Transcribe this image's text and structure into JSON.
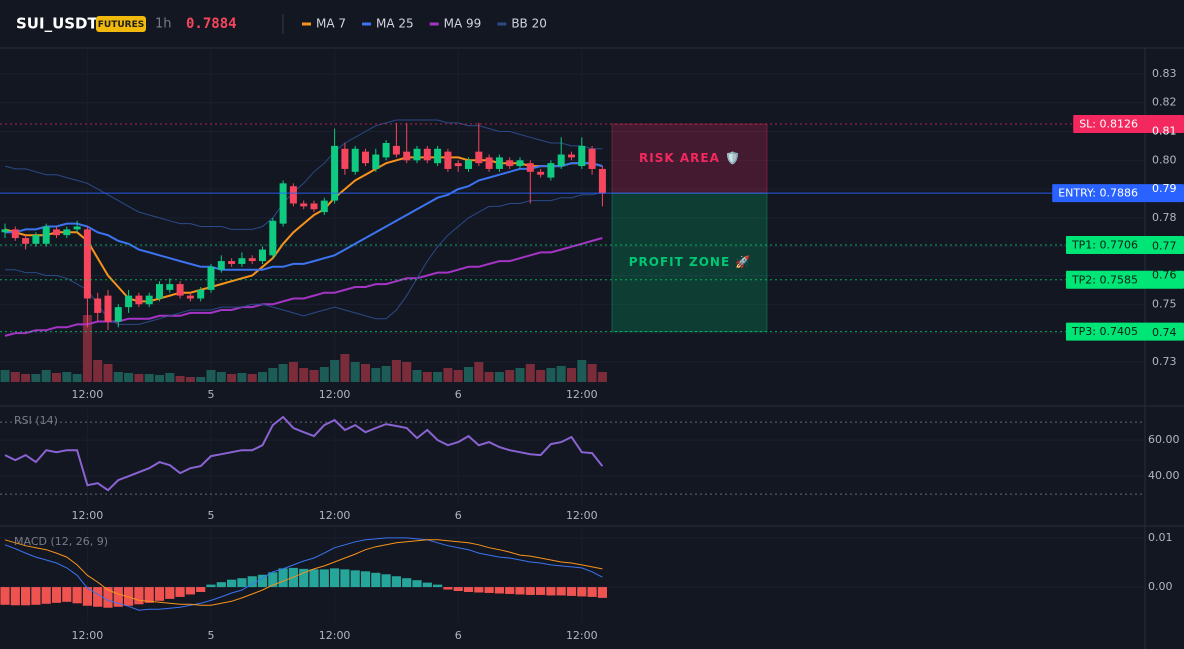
{
  "header": {
    "symbol": "SUI_USDT",
    "badge": "FUTURES",
    "interval": "1h",
    "price": "0.7884"
  },
  "chart_data": [
    {
      "type": "candlestick",
      "categories": [
        null,
        null,
        null,
        null,
        null,
        null,
        null,
        null,
        "12:00",
        null,
        null,
        null,
        null,
        null,
        null,
        null,
        null,
        null,
        null,
        null,
        "5",
        null,
        null,
        null,
        null,
        null,
        null,
        null,
        null,
        null,
        null,
        null,
        "12:00",
        null,
        null,
        null,
        null,
        null,
        null,
        null,
        null,
        null,
        null,
        null,
        "6",
        null,
        null,
        null,
        null,
        null,
        null,
        null,
        null,
        null,
        null,
        null,
        "12:00",
        null,
        null
      ],
      "open": [
        0.775,
        0.776,
        0.773,
        0.771,
        0.771,
        0.776,
        0.774,
        0.776,
        0.776,
        0.752,
        0.753,
        0.744,
        0.749,
        0.753,
        0.75,
        0.752,
        0.755,
        0.757,
        0.753,
        0.752,
        0.755,
        0.762,
        0.765,
        0.764,
        0.766,
        0.765,
        0.767,
        0.778,
        0.791,
        0.785,
        0.785,
        0.782,
        0.786,
        0.804,
        0.796,
        0.803,
        0.797,
        0.801,
        0.805,
        0.803,
        0.8,
        0.804,
        0.799,
        0.803,
        0.799,
        0.797,
        0.803,
        0.801,
        0.797,
        0.8,
        0.798,
        0.799,
        0.796,
        0.794,
        0.798,
        0.802,
        0.798,
        0.804,
        0.797
      ],
      "high": [
        0.778,
        0.777,
        0.774,
        0.775,
        0.778,
        0.777,
        0.777,
        0.779,
        0.777,
        0.754,
        0.755,
        0.75,
        0.755,
        0.754,
        0.754,
        0.758,
        0.759,
        0.758,
        0.754,
        0.756,
        0.764,
        0.767,
        0.766,
        0.768,
        0.767,
        0.77,
        0.78,
        0.793,
        0.792,
        0.786,
        0.786,
        0.787,
        0.811,
        0.806,
        0.805,
        0.804,
        0.804,
        0.807,
        0.813,
        0.813,
        0.805,
        0.805,
        0.805,
        0.804,
        0.8,
        0.801,
        0.813,
        0.802,
        0.802,
        0.801,
        0.801,
        0.8,
        0.797,
        0.8,
        0.808,
        0.803,
        0.808,
        0.805,
        0.798
      ],
      "low": [
        0.773,
        0.772,
        0.769,
        0.77,
        0.77,
        0.773,
        0.773,
        0.775,
        0.742,
        0.744,
        0.741,
        0.742,
        0.747,
        0.749,
        0.749,
        0.751,
        0.754,
        0.752,
        0.751,
        0.751,
        0.754,
        0.761,
        0.763,
        0.763,
        0.764,
        0.764,
        0.766,
        0.777,
        0.784,
        0.783,
        0.782,
        0.781,
        0.785,
        0.795,
        0.795,
        0.798,
        0.796,
        0.8,
        0.801,
        0.799,
        0.799,
        0.799,
        0.798,
        0.796,
        0.796,
        0.796,
        0.798,
        0.796,
        0.796,
        0.797,
        0.797,
        0.785,
        0.794,
        0.793,
        0.797,
        0.8,
        0.797,
        0.795,
        0.784
      ],
      "close": [
        0.776,
        0.773,
        0.771,
        0.774,
        0.777,
        0.774,
        0.776,
        0.777,
        0.752,
        0.747,
        0.744,
        0.749,
        0.753,
        0.75,
        0.753,
        0.757,
        0.757,
        0.753,
        0.752,
        0.755,
        0.763,
        0.765,
        0.764,
        0.766,
        0.765,
        0.769,
        0.779,
        0.792,
        0.785,
        0.784,
        0.783,
        0.786,
        0.805,
        0.797,
        0.804,
        0.799,
        0.802,
        0.806,
        0.802,
        0.8,
        0.804,
        0.8,
        0.804,
        0.797,
        0.798,
        0.8,
        0.799,
        0.797,
        0.801,
        0.798,
        0.8,
        0.796,
        0.795,
        0.799,
        0.802,
        0.801,
        0.805,
        0.797,
        0.7884
      ],
      "volume": [
        12,
        10,
        8,
        8,
        12,
        9,
        10,
        8,
        67,
        22,
        18,
        10,
        9,
        8,
        8,
        7,
        9,
        6,
        5,
        5,
        12,
        10,
        8,
        9,
        8,
        10,
        14,
        18,
        20,
        14,
        12,
        15,
        22,
        28,
        20,
        18,
        14,
        16,
        22,
        20,
        12,
        10,
        10,
        14,
        12,
        15,
        20,
        10,
        10,
        12,
        14,
        18,
        12,
        14,
        16,
        14,
        22,
        18,
        10
      ],
      "up_color": "#0ecb81",
      "down_color": "#f6465d",
      "volume_up_color": "#1d5c56",
      "volume_down_color": "#7a2c3a",
      "series": [
        {
          "name": "MA 7",
          "color": "#f7931a",
          "values": [
            0.776,
            0.775,
            0.774,
            0.774,
            0.774,
            0.775,
            0.775,
            0.775,
            0.772,
            0.766,
            0.76,
            0.756,
            0.752,
            0.751,
            0.751,
            0.752,
            0.753,
            0.754,
            0.754,
            0.755,
            0.756,
            0.757,
            0.758,
            0.759,
            0.76,
            0.763,
            0.766,
            0.771,
            0.775,
            0.778,
            0.781,
            0.783,
            0.787,
            0.79,
            0.793,
            0.795,
            0.797,
            0.799,
            0.8,
            0.801,
            0.801,
            0.801,
            0.801,
            0.801,
            0.801,
            0.8,
            0.8,
            0.8,
            0.799,
            0.799,
            0.799,
            0.798,
            0.798,
            0.798,
            0.798,
            0.799,
            0.799,
            0.799,
            0.798
          ]
        },
        {
          "name": "MA 25",
          "color": "#3b73f0",
          "values": [
            0.775,
            0.775,
            0.776,
            0.776,
            0.777,
            0.777,
            0.778,
            0.778,
            0.777,
            0.775,
            0.774,
            0.772,
            0.771,
            0.769,
            0.768,
            0.767,
            0.766,
            0.765,
            0.764,
            0.763,
            0.763,
            0.762,
            0.762,
            0.762,
            0.762,
            0.762,
            0.763,
            0.763,
            0.764,
            0.764,
            0.765,
            0.766,
            0.767,
            0.769,
            0.771,
            0.773,
            0.775,
            0.777,
            0.779,
            0.781,
            0.783,
            0.785,
            0.787,
            0.788,
            0.79,
            0.791,
            0.793,
            0.794,
            0.795,
            0.796,
            0.797,
            0.797,
            0.798,
            0.798,
            0.798,
            0.799,
            0.799,
            0.799,
            0.798
          ]
        },
        {
          "name": "MA 99",
          "color": "#a434c4",
          "values": [
            0.739,
            0.74,
            0.74,
            0.741,
            0.741,
            0.742,
            0.742,
            0.743,
            0.743,
            0.744,
            0.744,
            0.744,
            0.745,
            0.745,
            0.745,
            0.746,
            0.746,
            0.746,
            0.747,
            0.747,
            0.747,
            0.748,
            0.748,
            0.749,
            0.749,
            0.75,
            0.75,
            0.751,
            0.752,
            0.752,
            0.753,
            0.754,
            0.754,
            0.755,
            0.756,
            0.756,
            0.757,
            0.757,
            0.758,
            0.759,
            0.759,
            0.76,
            0.761,
            0.761,
            0.762,
            0.763,
            0.763,
            0.764,
            0.765,
            0.765,
            0.766,
            0.767,
            0.768,
            0.768,
            0.769,
            0.77,
            0.771,
            0.772,
            0.773
          ]
        },
        {
          "name": "BB 20",
          "color": "#2b4a88",
          "upper": [
            0.798,
            0.797,
            0.797,
            0.796,
            0.795,
            0.795,
            0.794,
            0.793,
            0.792,
            0.79,
            0.788,
            0.786,
            0.784,
            0.782,
            0.781,
            0.78,
            0.779,
            0.778,
            0.778,
            0.777,
            0.777,
            0.777,
            0.776,
            0.776,
            0.776,
            0.777,
            0.78,
            0.785,
            0.789,
            0.792,
            0.796,
            0.799,
            0.803,
            0.806,
            0.808,
            0.81,
            0.812,
            0.813,
            0.814,
            0.814,
            0.814,
            0.814,
            0.814,
            0.813,
            0.813,
            0.812,
            0.812,
            0.811,
            0.81,
            0.81,
            0.809,
            0.808,
            0.807,
            0.806,
            0.806,
            0.805,
            0.805,
            0.804,
            0.804
          ],
          "lower": [
            0.762,
            0.762,
            0.761,
            0.761,
            0.76,
            0.76,
            0.759,
            0.757,
            0.755,
            0.75,
            0.745,
            0.743,
            0.743,
            0.743,
            0.744,
            0.745,
            0.746,
            0.747,
            0.748,
            0.748,
            0.748,
            0.749,
            0.749,
            0.749,
            0.75,
            0.75,
            0.749,
            0.748,
            0.747,
            0.746,
            0.747,
            0.748,
            0.749,
            0.748,
            0.747,
            0.746,
            0.745,
            0.745,
            0.748,
            0.753,
            0.759,
            0.765,
            0.77,
            0.774,
            0.777,
            0.78,
            0.782,
            0.784,
            0.784,
            0.785,
            0.785,
            0.786,
            0.786,
            0.786,
            0.787,
            0.787,
            0.788,
            0.788,
            0.789
          ]
        }
      ],
      "ylim": [
        0.723,
        0.839
      ],
      "yticks": [
        0.73,
        0.74,
        0.75,
        0.76,
        0.77,
        0.78,
        0.79,
        {
          "value": 0.8,
          "label": "0.80"
        },
        0.81,
        0.82,
        0.83
      ],
      "levels": [
        {
          "label": "SL: 0.8126",
          "value": 0.8126,
          "color": "#f2285f"
        },
        {
          "label": "ENTRY: 0.7886",
          "value": 0.7886,
          "color": "#2962ff"
        },
        {
          "label": "TP1: 0.7706",
          "value": 0.7706,
          "color": "#00e676"
        },
        {
          "label": "TP2: 0.7585",
          "value": 0.7585,
          "color": "#00e676"
        },
        {
          "label": "TP3: 0.7405",
          "value": 0.7405,
          "color": "#00e676"
        }
      ],
      "zones": [
        {
          "label": "RISK AREA 🛡️",
          "from": 0.7886,
          "to": 0.8126,
          "color": "#f2285f"
        },
        {
          "label": "PROFIT ZONE 🚀",
          "from": 0.7405,
          "to": 0.7886,
          "color": "#00c774"
        }
      ]
    },
    {
      "type": "line",
      "title": "RSI (14)",
      "categories": [
        null,
        null,
        null,
        null,
        null,
        null,
        null,
        null,
        "12:00",
        null,
        null,
        null,
        null,
        null,
        null,
        null,
        null,
        null,
        null,
        null,
        "5",
        null,
        null,
        null,
        null,
        null,
        null,
        null,
        null,
        null,
        null,
        null,
        "12:00",
        null,
        null,
        null,
        null,
        null,
        null,
        null,
        null,
        null,
        null,
        null,
        "6",
        null,
        null,
        null,
        null,
        null,
        null,
        null,
        null,
        null,
        null,
        null,
        "12:00",
        null,
        null
      ],
      "color": "#8a63d2",
      "values": [
        51.7,
        48.9,
        51.7,
        47.8,
        54.4,
        53.3,
        54.4,
        54.4,
        35.0,
        36.1,
        32.2,
        37.8,
        40.0,
        42.2,
        44.4,
        47.8,
        46.1,
        41.7,
        44.4,
        45.6,
        51.1,
        52.2,
        53.3,
        54.4,
        54.4,
        57.2,
        68.3,
        72.8,
        66.7,
        64.4,
        62.2,
        68.3,
        71.1,
        65.6,
        68.3,
        64.4,
        66.7,
        68.9,
        67.8,
        66.7,
        61.1,
        65.6,
        60.0,
        57.2,
        58.9,
        62.2,
        57.2,
        58.9,
        56.1,
        54.4,
        53.3,
        52.2,
        51.7,
        57.8,
        58.9,
        61.7,
        53.3,
        52.8,
        45.6
      ],
      "ylim": [
        24,
        76.7
      ],
      "yticks": [
        {
          "value": 40,
          "label": "40.00"
        },
        {
          "value": 60,
          "label": "60.00"
        }
      ],
      "levels": [
        30,
        70
      ]
    },
    {
      "type": "macd",
      "title": "MACD (12, 26, 9)",
      "categories": [
        null,
        null,
        null,
        null,
        null,
        null,
        null,
        null,
        "12:00",
        null,
        null,
        null,
        null,
        null,
        null,
        null,
        null,
        null,
        null,
        null,
        "5",
        null,
        null,
        null,
        null,
        null,
        null,
        null,
        null,
        null,
        null,
        null,
        "12:00",
        null,
        null,
        null,
        null,
        null,
        null,
        null,
        null,
        null,
        null,
        null,
        "6",
        null,
        null,
        null,
        null,
        null,
        null,
        null,
        null,
        null,
        null,
        null,
        "12:00",
        null,
        null
      ],
      "series": [
        {
          "color": "#3b73f0",
          "values": [
            0.0086,
            0.0078,
            0.0069,
            0.0061,
            0.0055,
            0.0049,
            0.0039,
            0.0024,
            -0.0002,
            -0.0014,
            -0.0027,
            -0.0033,
            -0.0039,
            -0.0047,
            -0.0045,
            -0.0045,
            -0.0043,
            -0.0041,
            -0.0037,
            -0.0033,
            -0.0027,
            -0.002,
            -0.0012,
            -0.0006,
            0.0006,
            0.0018,
            0.0031,
            0.0037,
            0.0045,
            0.0053,
            0.0059,
            0.0069,
            0.008,
            0.0086,
            0.0092,
            0.0096,
            0.0098,
            0.01,
            0.01,
            0.01,
            0.0098,
            0.0096,
            0.009,
            0.0084,
            0.008,
            0.0076,
            0.0069,
            0.0065,
            0.0061,
            0.0059,
            0.0055,
            0.0051,
            0.0049,
            0.0045,
            0.0043,
            0.0041,
            0.0039,
            0.0031,
            0.002
          ]
        },
        {
          "color": "#f7931a",
          "values": [
            0.0096,
            0.009,
            0.0084,
            0.008,
            0.0076,
            0.0069,
            0.0061,
            0.0045,
            0.0024,
            0.001,
            -0.0006,
            -0.0014,
            -0.002,
            -0.0027,
            -0.0029,
            -0.0031,
            -0.0033,
            -0.0035,
            -0.0035,
            -0.0037,
            -0.0037,
            -0.0033,
            -0.0029,
            -0.0022,
            -0.0014,
            -0.0006,
            0.0004,
            0.0012,
            0.002,
            0.0029,
            0.0037,
            0.0043,
            0.0051,
            0.0059,
            0.0067,
            0.0076,
            0.0082,
            0.0086,
            0.009,
            0.0092,
            0.0094,
            0.0096,
            0.0096,
            0.0094,
            0.0092,
            0.009,
            0.0086,
            0.008,
            0.0076,
            0.0071,
            0.0065,
            0.0063,
            0.0059,
            0.0055,
            0.0051,
            0.0049,
            0.0045,
            0.0041,
            0.0037
          ]
        }
      ],
      "histogram": {
        "up_color": "#26a69a",
        "down_color": "#ef5350",
        "values": [
          -0.0036,
          -0.0037,
          -0.0037,
          -0.0036,
          -0.0034,
          -0.0032,
          -0.003,
          -0.0033,
          -0.0038,
          -0.004,
          -0.0042,
          -0.004,
          -0.0038,
          -0.0035,
          -0.0032,
          -0.0028,
          -0.0024,
          -0.002,
          -0.0015,
          -0.001,
          0.0005,
          0.001,
          0.0015,
          0.0018,
          0.0022,
          0.0025,
          0.003,
          0.0038,
          0.0039,
          0.0037,
          0.0036,
          0.0036,
          0.0038,
          0.0036,
          0.0034,
          0.0032,
          0.0029,
          0.0026,
          0.0022,
          0.0018,
          0.0014,
          0.0009,
          0.0005,
          -0.0005,
          -0.0008,
          -0.001,
          -0.0011,
          -0.0012,
          -0.0013,
          -0.0014,
          -0.0015,
          -0.0016,
          -0.0016,
          -0.0017,
          -0.0017,
          -0.0018,
          -0.0019,
          -0.002,
          -0.0022
        ]
      },
      "ylim": [
        -0.0071,
        0.0116
      ],
      "yticks": [
        {
          "value": 0,
          "label": "0.00"
        },
        0.01
      ]
    }
  ]
}
